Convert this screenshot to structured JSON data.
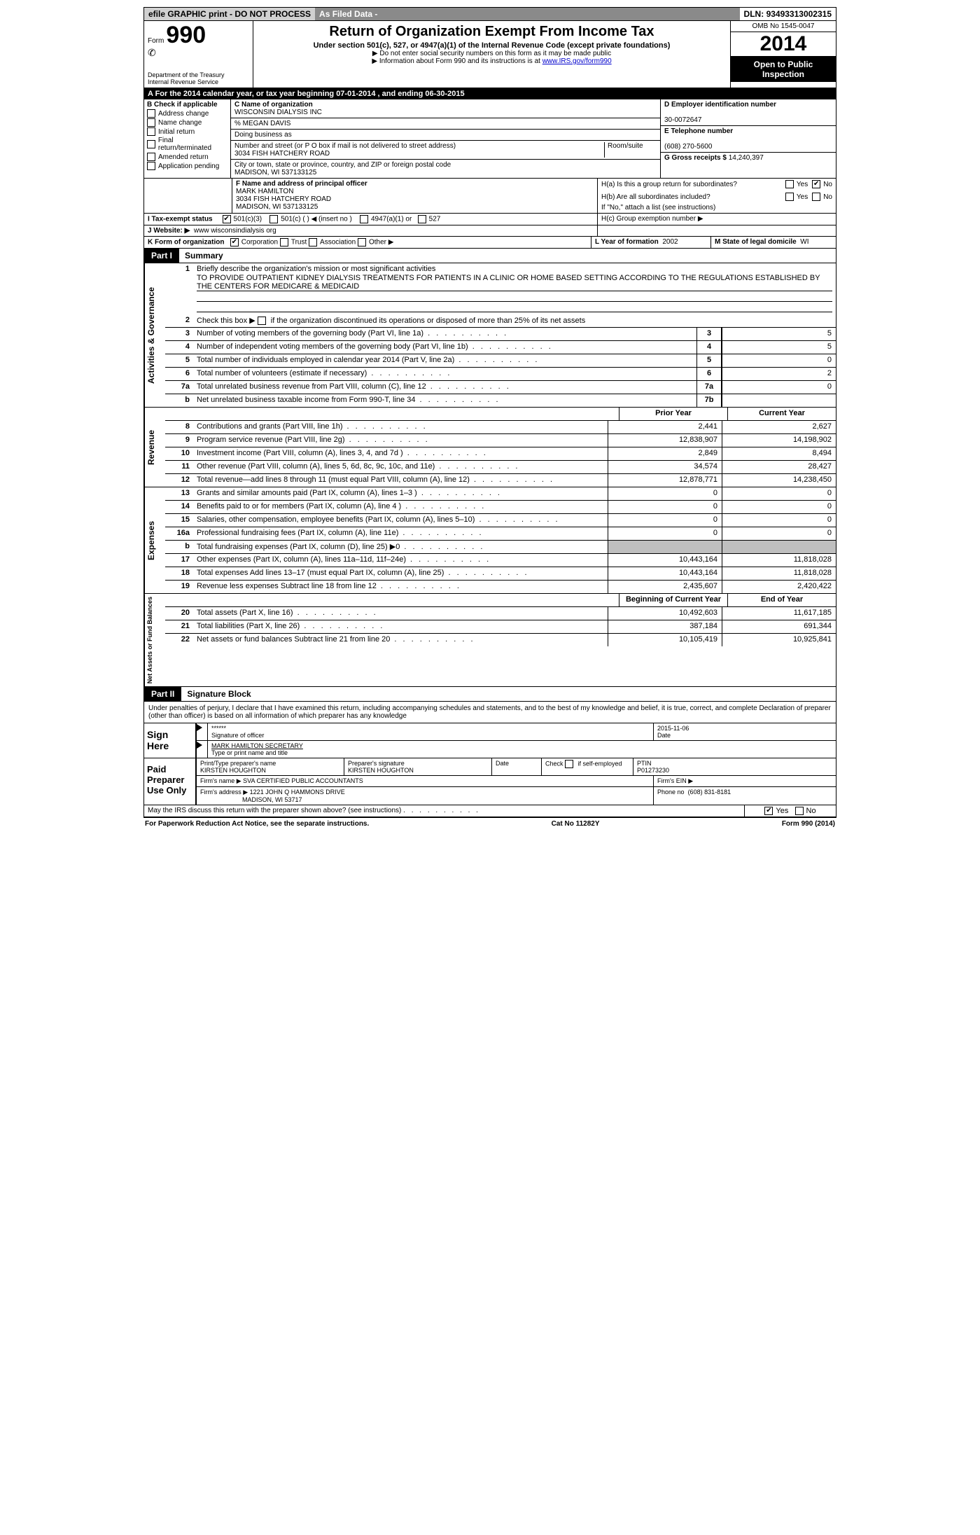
{
  "top": {
    "efile": "efile GRAPHIC print - DO NOT PROCESS",
    "asfiled": "As Filed Data -",
    "dln_label": "DLN:",
    "dln": "93493313002315"
  },
  "header": {
    "form_word": "Form",
    "form_num": "990",
    "dept1": "Department of the Treasury",
    "dept2": "Internal Revenue Service",
    "title": "Return of Organization Exempt From Income Tax",
    "sub1": "Under section 501(c), 527, or 4947(a)(1) of the Internal Revenue Code (except private foundations)",
    "sub2": "Do not enter social security numbers on this form as it may be made public",
    "sub3_pre": "Information about Form 990 and its instructions is at ",
    "sub3_link": "www.IRS.gov/form990",
    "omb": "OMB No 1545-0047",
    "year": "2014",
    "open1": "Open to Public",
    "open2": "Inspection"
  },
  "A": {
    "text": "A For the 2014 calendar year, or tax year beginning 07-01-2014   , and ending 06-30-2015"
  },
  "B": {
    "label": "B  Check if applicable",
    "items": [
      "Address change",
      "Name change",
      "Initial return",
      "Final return/terminated",
      "Amended return",
      "Application pending"
    ]
  },
  "C": {
    "name_label": "C Name of organization",
    "name": "WISCONSIN DIALYSIS INC",
    "care": "% MEGAN DAVIS",
    "dba_label": "Doing business as",
    "addr_label": "Number and street (or P O  box if mail is not delivered to street address)",
    "room_label": "Room/suite",
    "addr": "3034 FISH HATCHERY ROAD",
    "city_label": "City or town, state or province, country, and ZIP or foreign postal code",
    "city": "MADISON, WI  537133125"
  },
  "D": {
    "label": "D Employer identification number",
    "ein": "30-0072647"
  },
  "E": {
    "label": "E Telephone number",
    "phone": "(608) 270-5600"
  },
  "G": {
    "label": "G Gross receipts $",
    "amount": "14,240,397"
  },
  "F": {
    "label": "F  Name and address of principal officer",
    "name": "MARK HAMILTON",
    "addr1": "3034 FISH HATCHERY ROAD",
    "addr2": "MADISON, WI  537133125"
  },
  "H": {
    "a_label": "H(a)  Is this a group return for subordinates?",
    "b_label": "H(b)  Are all subordinates included?",
    "b_note": "If \"No,\" attach a list  (see instructions)",
    "c_label": "H(c)   Group exemption number ▶",
    "yes": "Yes",
    "no": "No"
  },
  "I": {
    "label": "I   Tax-exempt status",
    "opts": [
      "501(c)(3)",
      "501(c) (  ) ◀ (insert no )",
      "4947(a)(1) or",
      "527"
    ]
  },
  "J": {
    "label": "J   Website: ▶",
    "url": "www wisconsindialysis org"
  },
  "K": {
    "label": "K Form of organization",
    "opts": [
      "Corporation",
      "Trust",
      "Association",
      "Other ▶"
    ]
  },
  "L": {
    "label": "L Year of formation",
    "val": "2002"
  },
  "M": {
    "label": "M State of legal domicile",
    "val": "WI"
  },
  "part1": {
    "label": "Part I",
    "title": "Summary"
  },
  "summary": {
    "gov_label": "Activities & Governance",
    "rev_label": "Revenue",
    "exp_label": "Expenses",
    "net_label": "Net Assets or Fund Balances",
    "q1_label": "Briefly describe the organization's mission or most significant activities",
    "q1_text": "TO PROVIDE OUTPATIENT KIDNEY DIALYSIS TREATMENTS FOR PATIENTS IN A CLINIC OR HOME BASED SETTING ACCORDING TO THE REGULATIONS ESTABLISHED BY THE CENTERS FOR MEDICARE & MEDICAID",
    "q2": "Check this box ▶     if the organization discontinued its operations or disposed of more than 25% of its net assets",
    "rows_gov": [
      {
        "n": "3",
        "label": "Number of voting members of the governing body (Part VI, line 1a)",
        "box": "3",
        "val": "5"
      },
      {
        "n": "4",
        "label": "Number of independent voting members of the governing body (Part VI, line 1b)",
        "box": "4",
        "val": "5"
      },
      {
        "n": "5",
        "label": "Total number of individuals employed in calendar year 2014 (Part V, line 2a)",
        "box": "5",
        "val": "0"
      },
      {
        "n": "6",
        "label": "Total number of volunteers (estimate if necessary)",
        "box": "6",
        "val": "2"
      },
      {
        "n": "7a",
        "label": "Total unrelated business revenue from Part VIII, column (C), line 12",
        "box": "7a",
        "val": "0"
      },
      {
        "n": "b",
        "label": "Net unrelated business taxable income from Form 990-T, line 34",
        "box": "7b",
        "val": ""
      }
    ],
    "prior_label": "Prior Year",
    "current_label": "Current Year",
    "rows_rev": [
      {
        "n": "8",
        "label": "Contributions and grants (Part VIII, line 1h)",
        "prior": "2,441",
        "cur": "2,627"
      },
      {
        "n": "9",
        "label": "Program service revenue (Part VIII, line 2g)",
        "prior": "12,838,907",
        "cur": "14,198,902"
      },
      {
        "n": "10",
        "label": "Investment income (Part VIII, column (A), lines 3, 4, and 7d )",
        "prior": "2,849",
        "cur": "8,494"
      },
      {
        "n": "11",
        "label": "Other revenue (Part VIII, column (A), lines 5, 6d, 8c, 9c, 10c, and 11e)",
        "prior": "34,574",
        "cur": "28,427"
      },
      {
        "n": "12",
        "label": "Total revenue—add lines 8 through 11 (must equal Part VIII, column (A), line 12)",
        "prior": "12,878,771",
        "cur": "14,238,450"
      }
    ],
    "rows_exp": [
      {
        "n": "13",
        "label": "Grants and similar amounts paid (Part IX, column (A), lines 1–3 )",
        "prior": "0",
        "cur": "0"
      },
      {
        "n": "14",
        "label": "Benefits paid to or for members (Part IX, column (A), line 4 )",
        "prior": "0",
        "cur": "0"
      },
      {
        "n": "15",
        "label": "Salaries, other compensation, employee benefits (Part IX, column (A), lines 5–10)",
        "prior": "0",
        "cur": "0"
      },
      {
        "n": "16a",
        "label": "Professional fundraising fees (Part IX, column (A), line 11e)",
        "prior": "0",
        "cur": "0"
      },
      {
        "n": "b",
        "label": "Total fundraising expenses (Part IX, column (D), line 25) ▶0",
        "prior": "",
        "cur": "",
        "gray": true
      },
      {
        "n": "17",
        "label": "Other expenses (Part IX, column (A), lines 11a–11d, 11f–24e)",
        "prior": "10,443,164",
        "cur": "11,818,028"
      },
      {
        "n": "18",
        "label": "Total expenses  Add lines 13–17 (must equal Part IX, column (A), line 25)",
        "prior": "10,443,164",
        "cur": "11,818,028"
      },
      {
        "n": "19",
        "label": "Revenue less expenses  Subtract line 18 from line 12",
        "prior": "2,435,607",
        "cur": "2,420,422"
      }
    ],
    "beg_label": "Beginning of Current Year",
    "end_label": "End of Year",
    "rows_net": [
      {
        "n": "20",
        "label": "Total assets (Part X, line 16)",
        "prior": "10,492,603",
        "cur": "11,617,185"
      },
      {
        "n": "21",
        "label": "Total liabilities (Part X, line 26)",
        "prior": "387,184",
        "cur": "691,344"
      },
      {
        "n": "22",
        "label": "Net assets or fund balances  Subtract line 21 from line 20",
        "prior": "10,105,419",
        "cur": "10,925,841"
      }
    ]
  },
  "part2": {
    "label": "Part II",
    "title": "Signature Block"
  },
  "sig": {
    "perjury": "Under penalties of perjury, I declare that I have examined this return, including accompanying schedules and statements, and to the best of my knowledge and belief, it is true, correct, and complete  Declaration of preparer (other than officer) is based on all information of which preparer has any knowledge",
    "sign_here": "Sign Here",
    "stars": "******",
    "sig_of_officer": "Signature of officer",
    "date_label": "Date",
    "date": "2015-11-06",
    "officer_name": "MARK HAMILTON SECRETARY",
    "type_name": "Type or print name and title",
    "paid": "Paid Preparer Use Only",
    "prep_name_label": "Print/Type preparer's name",
    "prep_name": "KIRSTEN HOUGHTON",
    "prep_sig_label": "Preparer's signature",
    "prep_sig": "KIRSTEN HOUGHTON",
    "check_self": "Check     if self-employed",
    "ptin_label": "PTIN",
    "ptin": "P01273230",
    "firm_name_label": "Firm's name    ▶",
    "firm_name": "SVA CERTIFIED PUBLIC ACCOUNTANTS",
    "firm_ein_label": "Firm's EIN ▶",
    "firm_addr_label": "Firm's address ▶",
    "firm_addr1": "1221 JOHN Q HAMMONS DRIVE",
    "firm_addr2": "MADISON, WI  53717",
    "firm_phone_label": "Phone no",
    "firm_phone": "(608) 831-8181",
    "discuss": "May the IRS discuss this return with the preparer shown above? (see instructions)"
  },
  "footer": {
    "pra": "For Paperwork Reduction Act Notice, see the separate instructions.",
    "cat": "Cat No 11282Y",
    "form": "Form 990 (2014)"
  }
}
